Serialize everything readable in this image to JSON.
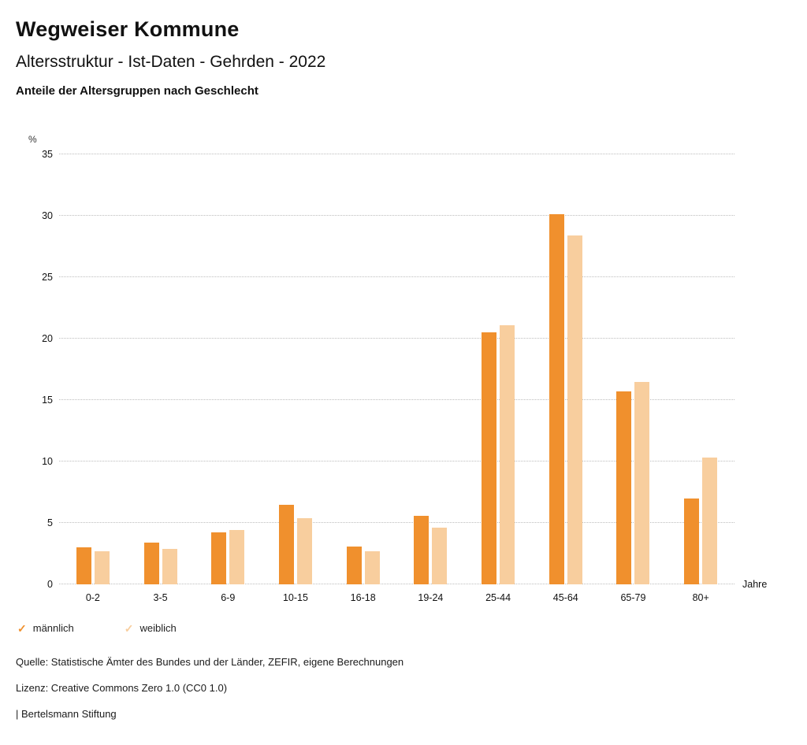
{
  "header": {
    "title": "Wegweiser Kommune",
    "subtitle": "Altersstruktur - Ist-Daten - Gehrden - 2022",
    "caption": "Anteile der Altersgruppen nach Geschlecht"
  },
  "chart_data": {
    "type": "bar",
    "title": "Anteile der Altersgruppen nach Geschlecht",
    "unit_label": "%",
    "axis_right_label": "Jahre",
    "categories": [
      "0-2",
      "3-5",
      "6-9",
      "10-15",
      "16-18",
      "19-24",
      "25-44",
      "45-64",
      "65-79",
      "80+"
    ],
    "series": [
      {
        "name": "männlich",
        "color": "#F0902D",
        "values": [
          3.0,
          3.4,
          4.2,
          6.5,
          3.1,
          5.6,
          20.5,
          30.1,
          15.7,
          7.0
        ]
      },
      {
        "name": "weiblich",
        "color": "#F8CE9E",
        "values": [
          2.7,
          2.9,
          4.4,
          5.4,
          2.7,
          4.6,
          21.1,
          28.4,
          16.5,
          10.3
        ]
      }
    ],
    "ylim": [
      0,
      35
    ],
    "ytick_step": 5,
    "grid": "dotted horizontal",
    "legend_position": "bottom-left"
  },
  "legend": {
    "marker": "✓"
  },
  "footer": {
    "source": "Quelle: Statistische Ämter des Bundes und der Länder, ZEFIR, eigene Berechnungen",
    "license": "Lizenz: Creative Commons Zero 1.0 (CC0 1.0)",
    "attribution": "| Bertelsmann Stiftung"
  }
}
